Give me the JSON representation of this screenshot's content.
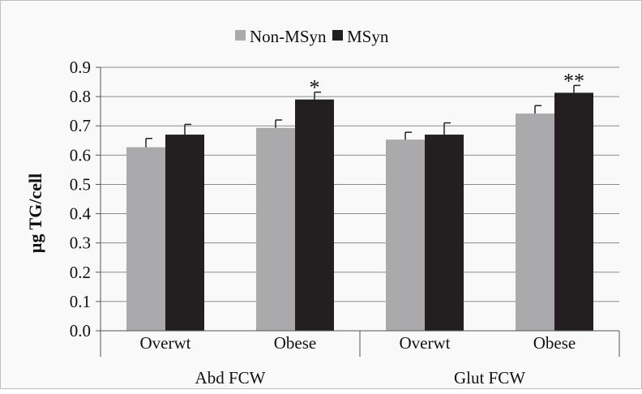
{
  "chart_data": {
    "type": "bar",
    "ylabel": "µg TG/cell",
    "ylim": [
      0,
      0.9
    ],
    "yticks": [
      "0.0",
      "0.1",
      "0.2",
      "0.3",
      "0.4",
      "0.5",
      "0.6",
      "0.7",
      "0.8",
      "0.9"
    ],
    "categories": [
      "Overwt",
      "Obese",
      "Overwt",
      "Obese"
    ],
    "groups": [
      "Abd FCW",
      "Glut FCW"
    ],
    "grid": true,
    "legend_position": "top",
    "series": [
      {
        "name": "Non-MSyn",
        "color": "#aaaaac",
        "values": [
          0.627,
          0.693,
          0.653,
          0.742
        ],
        "errors": [
          0.03,
          0.027,
          0.025,
          0.027
        ]
      },
      {
        "name": "MSyn",
        "color": "#231f20",
        "values": [
          0.67,
          0.79,
          0.67,
          0.813
        ],
        "errors": [
          0.035,
          0.025,
          0.04,
          0.025
        ]
      }
    ],
    "annotations": [
      {
        "text": "*",
        "category_index": 1,
        "series_index": 1
      },
      {
        "text": "**",
        "category_index": 3,
        "series_index": 1
      }
    ]
  }
}
